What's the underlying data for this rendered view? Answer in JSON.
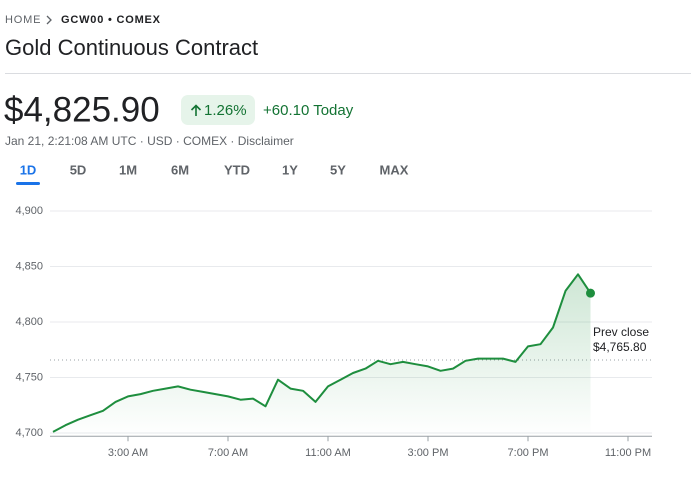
{
  "breadcrumb": [
    "HOME",
    "GCW00 • COMEX"
  ],
  "title": "Gold Continuous Contract",
  "quote": {
    "price": "$4,825.90",
    "change_pct": "1.26%",
    "change": "+60.10 Today",
    "meta": "Jan 21, 2:21:08 AM UTC · USD · COMEX · Disclaimer"
  },
  "tabs": [
    "1D",
    "5D",
    "1M",
    "6M",
    "YTD",
    "1Y",
    "5Y",
    "MAX"
  ],
  "selected_tab": 0,
  "chart_data": {
    "type": "line",
    "color": "#1e8e3e",
    "x": [
      0,
      0.5,
      1,
      1.5,
      2,
      2.5,
      3,
      3.5,
      4,
      4.5,
      5,
      5.5,
      6,
      6.5,
      7,
      7.5,
      8,
      8.5,
      9,
      9.5,
      10,
      10.5,
      11,
      11.5,
      12,
      12.5,
      13,
      13.5,
      14,
      14.5,
      15,
      15.5,
      16,
      16.5,
      17,
      17.5,
      18,
      18.5,
      19,
      19.5,
      20,
      20.5,
      21,
      21.5
    ],
    "values": [
      4701,
      4707,
      4712,
      4716,
      4720,
      4728,
      4733,
      4735,
      4738,
      4740,
      4742,
      4739,
      4737,
      4735,
      4733,
      4730,
      4731,
      4724,
      4748,
      4740,
      4738,
      4728,
      4742,
      4748,
      4754,
      4758,
      4765,
      4762,
      4764,
      4762,
      4760,
      4756,
      4758,
      4765,
      4767,
      4767,
      4767,
      4764,
      4778,
      4780,
      4795,
      4828,
      4843,
      4826
    ],
    "xlim": [
      -0.12,
      23.96
    ],
    "xticks": [
      {
        "value": 3,
        "label": "3:00 AM"
      },
      {
        "value": 7,
        "label": "7:00 AM"
      },
      {
        "value": 11,
        "label": "11:00 AM"
      },
      {
        "value": 15,
        "label": "3:00 PM"
      },
      {
        "value": 19,
        "label": "7:00 PM"
      },
      {
        "value": 23,
        "label": "11:00 PM"
      }
    ],
    "ylim": [
      4697,
      4903
    ],
    "yticks": [
      {
        "value": 4700,
        "label": "4,700"
      },
      {
        "value": 4750,
        "label": "4,750"
      },
      {
        "value": 4800,
        "label": "4,800"
      },
      {
        "value": 4850,
        "label": "4,850"
      },
      {
        "value": 4900,
        "label": "4,900"
      }
    ],
    "grid": true,
    "prev_close": {
      "label": "Prev close",
      "value": 4765.8,
      "value_label": "$4,765.80"
    }
  }
}
